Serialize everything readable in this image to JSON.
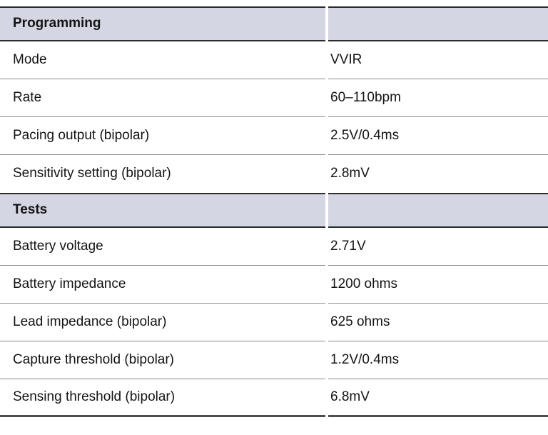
{
  "table": {
    "sections": [
      {
        "header": "Programming",
        "rows": [
          {
            "label": "Mode",
            "value": "VVIR"
          },
          {
            "label": "Rate",
            "value": "60–110bpm"
          },
          {
            "label": "Pacing output (bipolar)",
            "value": "2.5V/0.4ms"
          },
          {
            "label": "Sensitivity setting (bipolar)",
            "value": "2.8mV"
          }
        ]
      },
      {
        "header": "Tests",
        "rows": [
          {
            "label": "Battery voltage",
            "value": "2.71V"
          },
          {
            "label": "Battery impedance",
            "value": "1200 ohms"
          },
          {
            "label": "Lead impedance (bipolar)",
            "value": "625 ohms"
          },
          {
            "label": "Capture threshold (bipolar)",
            "value": "1.2V/0.4ms"
          },
          {
            "label": "Sensing threshold (bipolar)",
            "value": "6.8mV"
          }
        ]
      }
    ]
  },
  "colors": {
    "header_bg": "#d4d7e3",
    "dark_border": "#2b2b2b",
    "row_border": "#8d8d8d",
    "bottom_border": "#4d4d4d",
    "text": "#141414"
  }
}
